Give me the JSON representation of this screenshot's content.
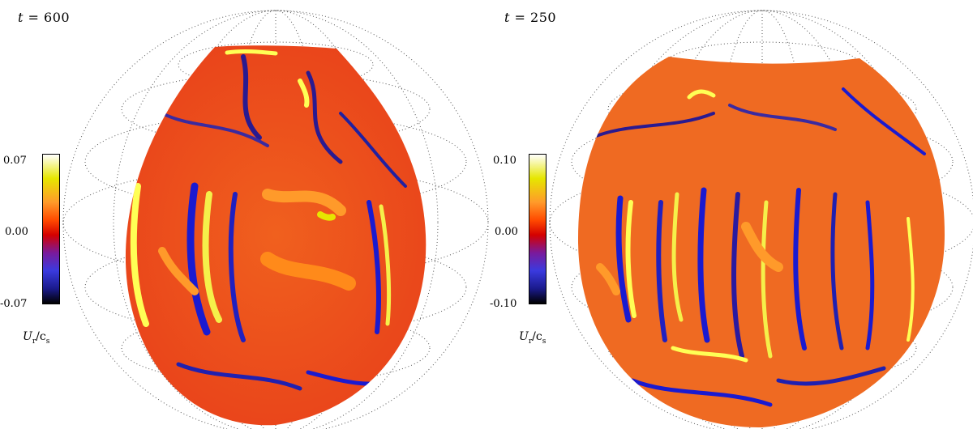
{
  "panels": [
    {
      "t_symbol": "t",
      "t_equals": "= 600",
      "colorbar": {
        "max": "0.07",
        "mid": "0.00",
        "min": "-0.07"
      },
      "quantity": {
        "symbol": "U",
        "sub_r": "r",
        "sep": "/c",
        "sub_s": "s"
      }
    },
    {
      "t_symbol": "t",
      "t_equals": "= 250",
      "colorbar": {
        "max": "0.10",
        "mid": "0.00",
        "min": "-0.10"
      },
      "quantity": {
        "symbol": "U",
        "sub_r": "r",
        "sep": "/c",
        "sub_s": "s"
      }
    }
  ],
  "colors": {
    "colormap": [
      "#000000",
      "#1a1a8c",
      "#3a3adf",
      "#7a1a9c",
      "#d40000",
      "#ff4a00",
      "#ff9a2a",
      "#e6e600",
      "#ffffff"
    ],
    "background_field": "#f26a1e"
  }
}
